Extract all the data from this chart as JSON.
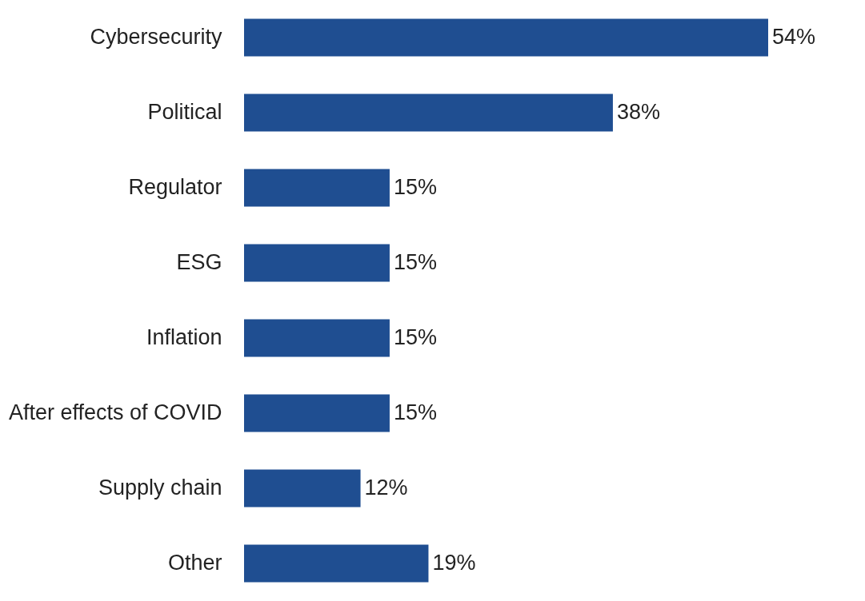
{
  "chart_data": {
    "type": "bar",
    "orientation": "horizontal",
    "categories": [
      "Cybersecurity",
      "Political",
      "Regulator",
      "ESG",
      "Inflation",
      "After effects of COVID",
      "Supply chain",
      "Other"
    ],
    "values": [
      54,
      38,
      15,
      15,
      15,
      15,
      12,
      19
    ],
    "value_labels": [
      "54%",
      "38%",
      "15%",
      "15%",
      "15%",
      "15%",
      "12%",
      "19%"
    ],
    "color": "#1f4e91"
  }
}
